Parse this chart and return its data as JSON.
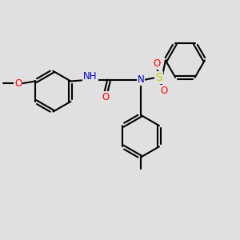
{
  "bg_color": "#e0e0e0",
  "bond_color": "#000000",
  "bond_width": 1.5,
  "atom_colors": {
    "N": "#0000cc",
    "O": "#ff0000",
    "S": "#cccc00",
    "H": "#4466cc",
    "C": "#000000"
  },
  "font_size": 8.5
}
